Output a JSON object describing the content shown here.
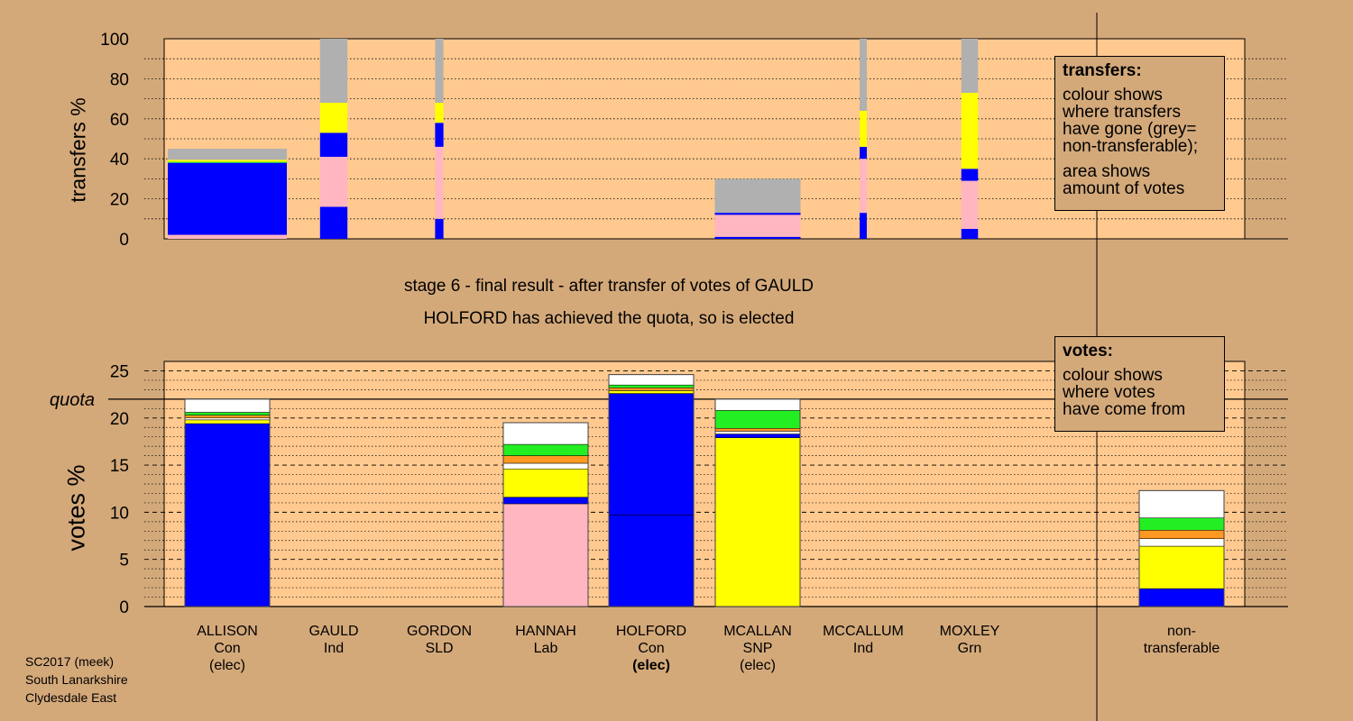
{
  "header": {
    "stage_line": "stage 6 - final result - after transfer of votes of GAULD",
    "elected_line": "HOLFORD has achieved the quota, so is elected"
  },
  "colors": {
    "Con": "#0000ff",
    "Lab": "#ffb6c1",
    "SNP": "#ffff00",
    "Grn": "#22ee22",
    "SLD": "#ff9922",
    "Ind": "#ffffff",
    "nontransferable": "#b0b0b0",
    "plot_bg": "#ffc98f",
    "page_bg": "#d4a97a"
  },
  "transfers_legend": {
    "title": "transfers:",
    "lines": [
      "colour shows",
      "where transfers",
      "have gone (grey=",
      "non-transferable);"
    ],
    "lines2": [
      "area shows",
      "amount of votes"
    ]
  },
  "votes_legend": {
    "title": "votes:",
    "lines": [
      "colour shows",
      "where votes",
      "have come from"
    ]
  },
  "candidates": [
    {
      "name": "ALLISON",
      "party": "Con",
      "status": "(elec)",
      "status_bold": false
    },
    {
      "name": "GAULD",
      "party": "Ind",
      "status": "",
      "status_bold": false
    },
    {
      "name": "GORDON",
      "party": "SLD",
      "status": "",
      "status_bold": false
    },
    {
      "name": "HANNAH",
      "party": "Lab",
      "status": "",
      "status_bold": false
    },
    {
      "name": "HOLFORD",
      "party": "Con",
      "status": "(elec)",
      "status_bold": true
    },
    {
      "name": "MCALLAN",
      "party": "SNP",
      "status": "(elec)",
      "status_bold": false
    },
    {
      "name": "MCCALLUM",
      "party": "Ind",
      "status": "",
      "status_bold": false
    },
    {
      "name": "MOXLEY",
      "party": "Grn",
      "status": "",
      "status_bold": false
    },
    {
      "name": "non-",
      "party": "transferable",
      "status": "",
      "status_bold": false
    }
  ],
  "footer": {
    "lines": [
      "SC2017 (meek)",
      "South Lanarkshire",
      "Clydesdale East"
    ]
  },
  "chart_data": [
    {
      "type": "bar",
      "panel": "transfers",
      "ylabel": "transfers %",
      "ylim": [
        0,
        100
      ],
      "yticks": [
        0,
        20,
        40,
        60,
        80,
        100
      ],
      "grid": "dotted every 10",
      "legend": "top-right",
      "note": "bar height = percentage, bar width proportional to amount of votes transferred",
      "bars": [
        {
          "source": "ALLISON",
          "relative_width": 1.0,
          "segments": [
            {
              "party": "Lab",
              "from": 0,
              "to": 2
            },
            {
              "party": "Con",
              "from": 2,
              "to": 38
            },
            {
              "party": "Grn",
              "from": 38,
              "to": 38.5
            },
            {
              "party": "SNP",
              "from": 38.5,
              "to": 39.5
            },
            {
              "party": "nontransferable",
              "from": 39.5,
              "to": 45
            }
          ]
        },
        {
          "source": "GAULD",
          "relative_width": 0.23,
          "segments": [
            {
              "party": "Con",
              "from": 0,
              "to": 16
            },
            {
              "party": "Lab",
              "from": 16,
              "to": 41
            },
            {
              "party": "Con",
              "from": 41,
              "to": 53
            },
            {
              "party": "SNP",
              "from": 53,
              "to": 68
            },
            {
              "party": "nontransferable",
              "from": 68,
              "to": 100
            }
          ]
        },
        {
          "source": "GORDON",
          "relative_width": 0.07,
          "segments": [
            {
              "party": "Con",
              "from": 0,
              "to": 10
            },
            {
              "party": "Lab",
              "from": 10,
              "to": 46
            },
            {
              "party": "Con",
              "from": 46,
              "to": 58
            },
            {
              "party": "SNP",
              "from": 58,
              "to": 68
            },
            {
              "party": "nontransferable",
              "from": 68,
              "to": 100
            }
          ]
        },
        {
          "source": "MCALLAN",
          "relative_width": 0.72,
          "segments": [
            {
              "party": "Con",
              "from": 0,
              "to": 1
            },
            {
              "party": "Lab",
              "from": 1,
              "to": 12
            },
            {
              "party": "Con",
              "from": 12,
              "to": 13
            },
            {
              "party": "nontransferable",
              "from": 13,
              "to": 30
            }
          ]
        },
        {
          "source": "MCCALLUM",
          "relative_width": 0.06,
          "segments": [
            {
              "party": "Con",
              "from": 0,
              "to": 13
            },
            {
              "party": "Lab",
              "from": 13,
              "to": 40
            },
            {
              "party": "Con",
              "from": 40,
              "to": 46
            },
            {
              "party": "SNP",
              "from": 46,
              "to": 64
            },
            {
              "party": "nontransferable",
              "from": 64,
              "to": 100
            }
          ]
        },
        {
          "source": "MOXLEY",
          "relative_width": 0.14,
          "segments": [
            {
              "party": "Con",
              "from": 0,
              "to": 5
            },
            {
              "party": "Lab",
              "from": 5,
              "to": 29
            },
            {
              "party": "Con",
              "from": 29,
              "to": 35
            },
            {
              "party": "SNP",
              "from": 35,
              "to": 73
            },
            {
              "party": "nontransferable",
              "from": 73,
              "to": 100
            }
          ]
        }
      ]
    },
    {
      "type": "bar",
      "panel": "votes",
      "ylabel": "votes %",
      "ylim": [
        0,
        26
      ],
      "yticks": [
        0,
        5,
        10,
        15,
        20,
        25
      ],
      "grid": "dotted every 1, dashed every 5",
      "quota": 22.0,
      "quota_label": "quota",
      "legend": "top-right",
      "bars": [
        {
          "candidate": "ALLISON",
          "segments": [
            {
              "party": "Con",
              "from": 0,
              "to": 19.4
            },
            {
              "party": "SNP",
              "from": 19.4,
              "to": 19.8
            },
            {
              "party": "Ind",
              "from": 19.8,
              "to": 20.0
            },
            {
              "party": "SLD",
              "from": 20.0,
              "to": 20.3
            },
            {
              "party": "Grn",
              "from": 20.3,
              "to": 20.6
            },
            {
              "party": "Ind",
              "from": 20.6,
              "to": 22.0
            }
          ]
        },
        {
          "candidate": "GAULD",
          "segments": []
        },
        {
          "candidate": "GORDON",
          "segments": []
        },
        {
          "candidate": "HANNAH",
          "segments": [
            {
              "party": "Lab",
              "from": 0,
              "to": 10.9
            },
            {
              "party": "Con",
              "from": 10.9,
              "to": 11.6
            },
            {
              "party": "SNP",
              "from": 11.6,
              "to": 14.6
            },
            {
              "party": "Ind",
              "from": 14.6,
              "to": 15.2
            },
            {
              "party": "SLD",
              "from": 15.2,
              "to": 16.0
            },
            {
              "party": "Grn",
              "from": 16.0,
              "to": 17.2
            },
            {
              "party": "Ind",
              "from": 17.2,
              "to": 19.5
            }
          ]
        },
        {
          "candidate": "HOLFORD",
          "segments": [
            {
              "party": "Con",
              "from": 0,
              "to": 9.7
            },
            {
              "party": "Con",
              "from": 9.7,
              "to": 22.6
            },
            {
              "party": "SNP",
              "from": 22.6,
              "to": 22.9
            },
            {
              "party": "SLD",
              "from": 22.9,
              "to": 23.2
            },
            {
              "party": "Grn",
              "from": 23.2,
              "to": 23.5
            },
            {
              "party": "Ind",
              "from": 23.5,
              "to": 24.6
            }
          ]
        },
        {
          "candidate": "MCALLAN",
          "segments": [
            {
              "party": "SNP",
              "from": 0,
              "to": 17.9
            },
            {
              "party": "Con",
              "from": 17.9,
              "to": 18.3
            },
            {
              "party": "Ind",
              "from": 18.3,
              "to": 18.6
            },
            {
              "party": "SLD",
              "from": 18.6,
              "to": 18.9
            },
            {
              "party": "Grn",
              "from": 18.9,
              "to": 20.8
            },
            {
              "party": "Ind",
              "from": 20.8,
              "to": 22.0
            }
          ]
        },
        {
          "candidate": "MCCALLUM",
          "segments": []
        },
        {
          "candidate": "MOXLEY",
          "segments": []
        },
        {
          "candidate": "non-transferable",
          "segments": [
            {
              "party": "Con",
              "from": 0,
              "to": 1.9
            },
            {
              "party": "SNP",
              "from": 1.9,
              "to": 6.4
            },
            {
              "party": "Ind",
              "from": 6.4,
              "to": 7.2
            },
            {
              "party": "SLD",
              "from": 7.2,
              "to": 8.1
            },
            {
              "party": "Grn",
              "from": 8.1,
              "to": 9.4
            },
            {
              "party": "Ind",
              "from": 9.4,
              "to": 12.3
            }
          ]
        }
      ]
    }
  ]
}
